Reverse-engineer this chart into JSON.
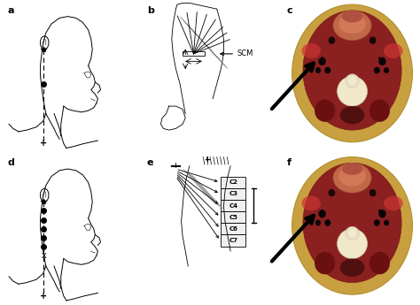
{
  "background_color": "#ffffff",
  "blue_bg": "#3355aa",
  "panel_labels": [
    "a",
    "b",
    "c",
    "d",
    "e",
    "f"
  ],
  "scm_label": "SCM",
  "c_vertebrae": [
    "C2",
    "C3",
    "C4",
    "C5",
    "C6",
    "C7"
  ],
  "ct_outer_color": "#c8a040",
  "ct_muscle_color": "#8b2020",
  "ct_dark_color": "#1a0808",
  "ct_bright_red": "#cc3333",
  "ct_vert_color": "#e8dfc0",
  "ct_pharynx_color": "#c06040"
}
